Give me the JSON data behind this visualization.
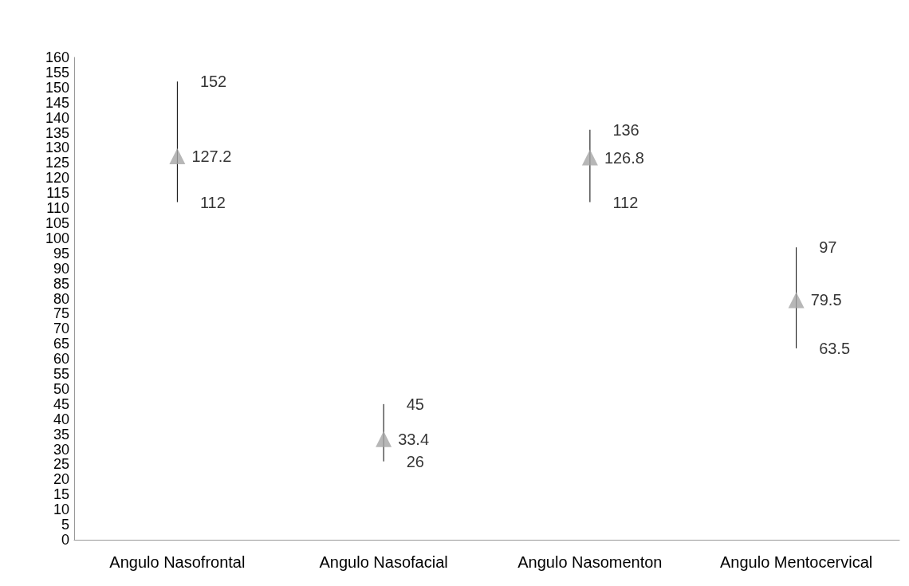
{
  "chart_data": {
    "type": "scatter",
    "categories": [
      "Angulo Nasofrontal",
      "Angulo Nasofacial",
      "Angulo Nasomenton",
      "Angulo Mentocervical"
    ],
    "series": [
      {
        "color": "#a5a5a5",
        "values": [
          127.2,
          33.4,
          126.8,
          79.5
        ],
        "errors": [
          [
            112,
            152
          ],
          [
            26,
            45
          ],
          [
            112,
            136
          ],
          [
            63.5,
            97
          ]
        ]
      }
    ],
    "marker": "triangle",
    "data_labels": true,
    "annotations": [
      {
        "text": "152",
        "x": "Angulo Nasofrontal",
        "y": 152
      },
      {
        "text": "112",
        "x": "Angulo Nasofrontal",
        "y": 112
      },
      {
        "text": "45",
        "x": "Angulo Nasofacial",
        "y": 45
      },
      {
        "text": "26",
        "x": "Angulo Nasofacial",
        "y": 26
      },
      {
        "text": "136",
        "x": "Angulo Nasomenton",
        "y": 136
      },
      {
        "text": "112",
        "x": "Angulo Nasomenton",
        "y": 112
      },
      {
        "text": "97",
        "x": "Angulo Mentocervical",
        "y": 97
      },
      {
        "text": "63.5",
        "x": "Angulo Mentocervical",
        "y": 63.5
      }
    ],
    "ylim": [
      0,
      160
    ],
    "yticks": [
      0,
      5,
      10,
      15,
      20,
      25,
      30,
      35,
      40,
      45,
      50,
      55,
      60,
      65,
      70,
      75,
      80,
      85,
      90,
      95,
      100,
      105,
      110,
      115,
      120,
      125,
      130,
      135,
      140,
      145,
      150,
      155,
      160
    ],
    "grid": false
  }
}
